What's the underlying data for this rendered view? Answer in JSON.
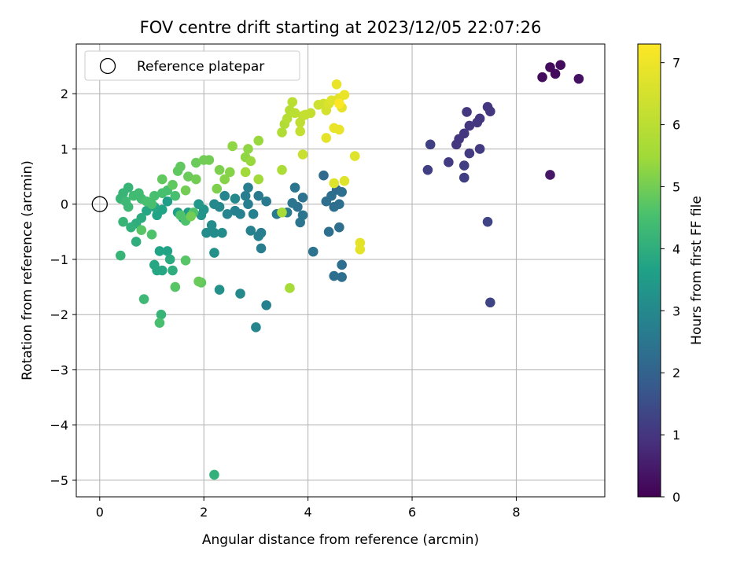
{
  "chart_data": {
    "type": "scatter",
    "title": "FOV centre drift starting at 2023/12/05 22:07:26",
    "xlabel": "Angular distance from reference (arcmin)",
    "ylabel": "Rotation from reference (arcmin)",
    "xlim": [
      -0.45,
      9.7
    ],
    "ylim": [
      -5.3,
      2.9
    ],
    "x_ticks": [
      0,
      2,
      4,
      6,
      8
    ],
    "y_ticks": [
      -5,
      -4,
      -3,
      -2,
      -1,
      0,
      1,
      2
    ],
    "grid": true,
    "legend": {
      "position": "top-left",
      "entries": [
        "Reference platepar"
      ]
    },
    "reference_point": {
      "x": 0,
      "y": 0,
      "label": "Reference platepar"
    },
    "colorbar": {
      "label": "Hours from first FF file",
      "range": [
        0,
        7.3
      ],
      "ticks": [
        0,
        1,
        2,
        3,
        4,
        5,
        6,
        7
      ],
      "colormap": "viridis"
    },
    "points": [
      [
        8.5,
        2.3,
        0.2
      ],
      [
        8.65,
        2.48,
        0.2
      ],
      [
        8.85,
        2.52,
        0.2
      ],
      [
        8.75,
        2.36,
        0.2
      ],
      [
        9.2,
        2.27,
        0.3
      ],
      [
        8.65,
        0.53,
        0.4
      ],
      [
        7.45,
        1.76,
        1.0
      ],
      [
        7.5,
        1.68,
        1.0
      ],
      [
        7.3,
        1.55,
        1.0
      ],
      [
        7.05,
        1.67,
        1.0
      ],
      [
        7.25,
        1.48,
        1.0
      ],
      [
        7.1,
        1.42,
        1.0
      ],
      [
        7.0,
        1.28,
        1.0
      ],
      [
        6.9,
        1.18,
        1.0
      ],
      [
        6.85,
        1.08,
        1.0
      ],
      [
        7.3,
        1.0,
        1.1
      ],
      [
        7.1,
        0.92,
        1.1
      ],
      [
        6.7,
        0.76,
        1.1
      ],
      [
        6.35,
        1.08,
        1.2
      ],
      [
        6.3,
        0.62,
        1.2
      ],
      [
        7.0,
        0.7,
        1.2
      ],
      [
        7.0,
        0.48,
        1.2
      ],
      [
        7.45,
        -0.32,
        1.3
      ],
      [
        7.5,
        -1.78,
        1.3
      ],
      [
        4.3,
        0.52,
        2.2
      ],
      [
        4.55,
        0.26,
        2.2
      ],
      [
        4.45,
        0.15,
        2.3
      ],
      [
        4.35,
        0.05,
        2.3
      ],
      [
        4.6,
        0.0,
        2.3
      ],
      [
        4.5,
        -0.05,
        2.3
      ],
      [
        4.65,
        0.22,
        2.3
      ],
      [
        3.9,
        0.12,
        2.4
      ],
      [
        3.8,
        -0.05,
        2.4
      ],
      [
        3.7,
        0.02,
        2.5
      ],
      [
        3.75,
        0.3,
        2.5
      ],
      [
        3.9,
        -0.2,
        2.5
      ],
      [
        4.4,
        -0.5,
        2.3
      ],
      [
        4.6,
        -0.42,
        2.3
      ],
      [
        4.1,
        -0.86,
        2.4
      ],
      [
        4.5,
        -1.3,
        2.3
      ],
      [
        4.65,
        -1.1,
        2.3
      ],
      [
        4.65,
        -1.32,
        2.3
      ],
      [
        3.85,
        -0.33,
        2.5
      ],
      [
        3.6,
        -0.15,
        2.6
      ],
      [
        3.4,
        -0.18,
        2.6
      ],
      [
        3.2,
        0.05,
        2.6
      ],
      [
        3.05,
        0.15,
        2.6
      ],
      [
        2.85,
        0.3,
        2.7
      ],
      [
        2.8,
        0.15,
        2.7
      ],
      [
        2.85,
        0.0,
        2.7
      ],
      [
        2.95,
        -0.18,
        2.8
      ],
      [
        3.05,
        -0.58,
        2.8
      ],
      [
        3.1,
        -0.52,
        2.7
      ],
      [
        3.1,
        -0.8,
        2.7
      ],
      [
        2.9,
        -0.48,
        2.8
      ],
      [
        2.7,
        -0.18,
        2.8
      ],
      [
        2.6,
        -0.12,
        2.8
      ],
      [
        2.45,
        -0.18,
        2.9
      ],
      [
        2.4,
        0.15,
        2.9
      ],
      [
        2.6,
        0.1,
        3.0
      ],
      [
        2.3,
        -0.05,
        3.0
      ],
      [
        2.2,
        0.0,
        3.0
      ],
      [
        2.15,
        -0.38,
        3.1
      ],
      [
        2.05,
        -0.52,
        3.1
      ],
      [
        2.2,
        -0.52,
        3.1
      ],
      [
        2.35,
        -0.52,
        3.1
      ],
      [
        2.2,
        -0.88,
        3.2
      ],
      [
        2.3,
        -1.55,
        3.2
      ],
      [
        2.7,
        -1.62,
        3.0
      ],
      [
        3.2,
        -1.83,
        2.8
      ],
      [
        3.0,
        -2.23,
        2.9
      ],
      [
        2.2,
        -4.9,
        4.1
      ],
      [
        2.0,
        -0.1,
        3.3
      ],
      [
        1.95,
        -0.2,
        3.3
      ],
      [
        1.9,
        0.0,
        3.4
      ],
      [
        1.7,
        -0.15,
        3.5
      ],
      [
        1.6,
        -0.25,
        3.6
      ],
      [
        1.5,
        -0.15,
        3.6
      ],
      [
        1.3,
        0.05,
        3.6
      ],
      [
        1.2,
        -0.1,
        3.7
      ],
      [
        1.1,
        -0.2,
        3.7
      ],
      [
        1.05,
        -0.05,
        3.8
      ],
      [
        0.9,
        -0.12,
        3.8
      ],
      [
        0.8,
        -0.25,
        3.9
      ],
      [
        0.7,
        -0.35,
        4.0
      ],
      [
        0.6,
        -0.42,
        4.1
      ],
      [
        0.55,
        0.3,
        4.2
      ],
      [
        0.45,
        0.2,
        4.2
      ],
      [
        0.4,
        0.1,
        4.2
      ],
      [
        0.5,
        0.05,
        4.3
      ],
      [
        0.55,
        -0.05,
        4.3
      ],
      [
        0.65,
        0.15,
        4.4
      ],
      [
        0.75,
        0.2,
        4.4
      ],
      [
        0.8,
        0.1,
        4.4
      ],
      [
        0.9,
        0.05,
        4.5
      ],
      [
        1.0,
        0.0,
        4.5
      ],
      [
        1.05,
        0.15,
        4.5
      ],
      [
        1.2,
        0.2,
        4.5
      ],
      [
        1.3,
        0.25,
        4.5
      ],
      [
        1.45,
        0.15,
        4.5
      ],
      [
        1.55,
        -0.2,
        4.6
      ],
      [
        1.65,
        -0.3,
        4.6
      ],
      [
        1.8,
        -0.15,
        4.6
      ],
      [
        1.3,
        -0.85,
        3.7
      ],
      [
        1.15,
        -0.85,
        3.7
      ],
      [
        1.05,
        -1.1,
        3.8
      ],
      [
        1.1,
        -1.2,
        3.8
      ],
      [
        1.2,
        -1.2,
        3.8
      ],
      [
        1.35,
        -1.0,
        3.9
      ],
      [
        1.4,
        -1.2,
        4.0
      ],
      [
        0.7,
        -0.68,
        4.0
      ],
      [
        0.4,
        -0.93,
        4.2
      ],
      [
        0.45,
        -0.32,
        4.2
      ],
      [
        0.85,
        -1.72,
        4.3
      ],
      [
        1.18,
        -2.0,
        4.2
      ],
      [
        1.15,
        -2.15,
        4.5
      ],
      [
        1.45,
        -1.5,
        4.7
      ],
      [
        1.65,
        -1.02,
        4.7
      ],
      [
        1.95,
        -1.42,
        4.8
      ],
      [
        1.9,
        -1.4,
        4.9
      ],
      [
        1.0,
        -0.55,
        4.6
      ],
      [
        0.8,
        -0.47,
        4.7
      ],
      [
        1.2,
        0.45,
        4.8
      ],
      [
        1.4,
        0.35,
        4.8
      ],
      [
        1.5,
        0.6,
        4.8
      ],
      [
        1.55,
        0.68,
        4.8
      ],
      [
        1.7,
        0.5,
        4.9
      ],
      [
        1.85,
        0.75,
        4.9
      ],
      [
        2.0,
        0.8,
        5.0
      ],
      [
        2.1,
        0.8,
        5.0
      ],
      [
        2.3,
        0.62,
        5.1
      ],
      [
        1.85,
        0.45,
        5.0
      ],
      [
        1.65,
        0.25,
        5.0
      ],
      [
        1.75,
        -0.22,
        5.0
      ],
      [
        2.25,
        0.28,
        5.1
      ],
      [
        2.4,
        0.45,
        5.2
      ],
      [
        2.5,
        0.58,
        5.2
      ],
      [
        2.55,
        1.05,
        5.3
      ],
      [
        2.8,
        0.85,
        5.3
      ],
      [
        2.85,
        1.0,
        5.3
      ],
      [
        3.05,
        1.15,
        5.4
      ],
      [
        2.9,
        0.78,
        5.4
      ],
      [
        2.8,
        0.58,
        5.5
      ],
      [
        3.05,
        0.45,
        5.5
      ],
      [
        3.5,
        -0.15,
        5.6
      ],
      [
        3.5,
        0.62,
        5.7
      ],
      [
        3.65,
        -1.52,
        5.6
      ],
      [
        3.5,
        1.3,
        5.8
      ],
      [
        3.55,
        1.45,
        5.8
      ],
      [
        3.6,
        1.55,
        5.9
      ],
      [
        3.65,
        1.7,
        5.9
      ],
      [
        3.7,
        1.85,
        6.0
      ],
      [
        3.75,
        1.65,
        6.0
      ],
      [
        3.85,
        1.48,
        6.1
      ],
      [
        3.9,
        1.6,
        6.1
      ],
      [
        3.95,
        1.62,
        6.2
      ],
      [
        4.05,
        1.65,
        6.2
      ],
      [
        3.85,
        1.32,
        6.2
      ],
      [
        3.9,
        0.9,
        6.3
      ],
      [
        4.2,
        1.8,
        6.4
      ],
      [
        4.3,
        1.82,
        6.4
      ],
      [
        4.35,
        1.7,
        6.5
      ],
      [
        4.4,
        1.82,
        6.6
      ],
      [
        4.45,
        1.88,
        6.7
      ],
      [
        4.55,
        1.88,
        6.7
      ],
      [
        4.6,
        1.92,
        6.8
      ],
      [
        4.65,
        1.75,
        6.8
      ],
      [
        4.55,
        2.17,
        6.9
      ],
      [
        4.7,
        1.98,
        6.9
      ],
      [
        4.6,
        1.82,
        7.3
      ],
      [
        4.35,
        1.2,
        6.8
      ],
      [
        4.5,
        1.38,
        6.9
      ],
      [
        4.6,
        1.35,
        6.9
      ],
      [
        4.7,
        0.42,
        6.7
      ],
      [
        4.9,
        0.87,
        6.7
      ],
      [
        5.0,
        -0.7,
        6.8
      ],
      [
        5.0,
        -0.82,
        6.8
      ],
      [
        4.5,
        0.38,
        6.7
      ]
    ]
  }
}
